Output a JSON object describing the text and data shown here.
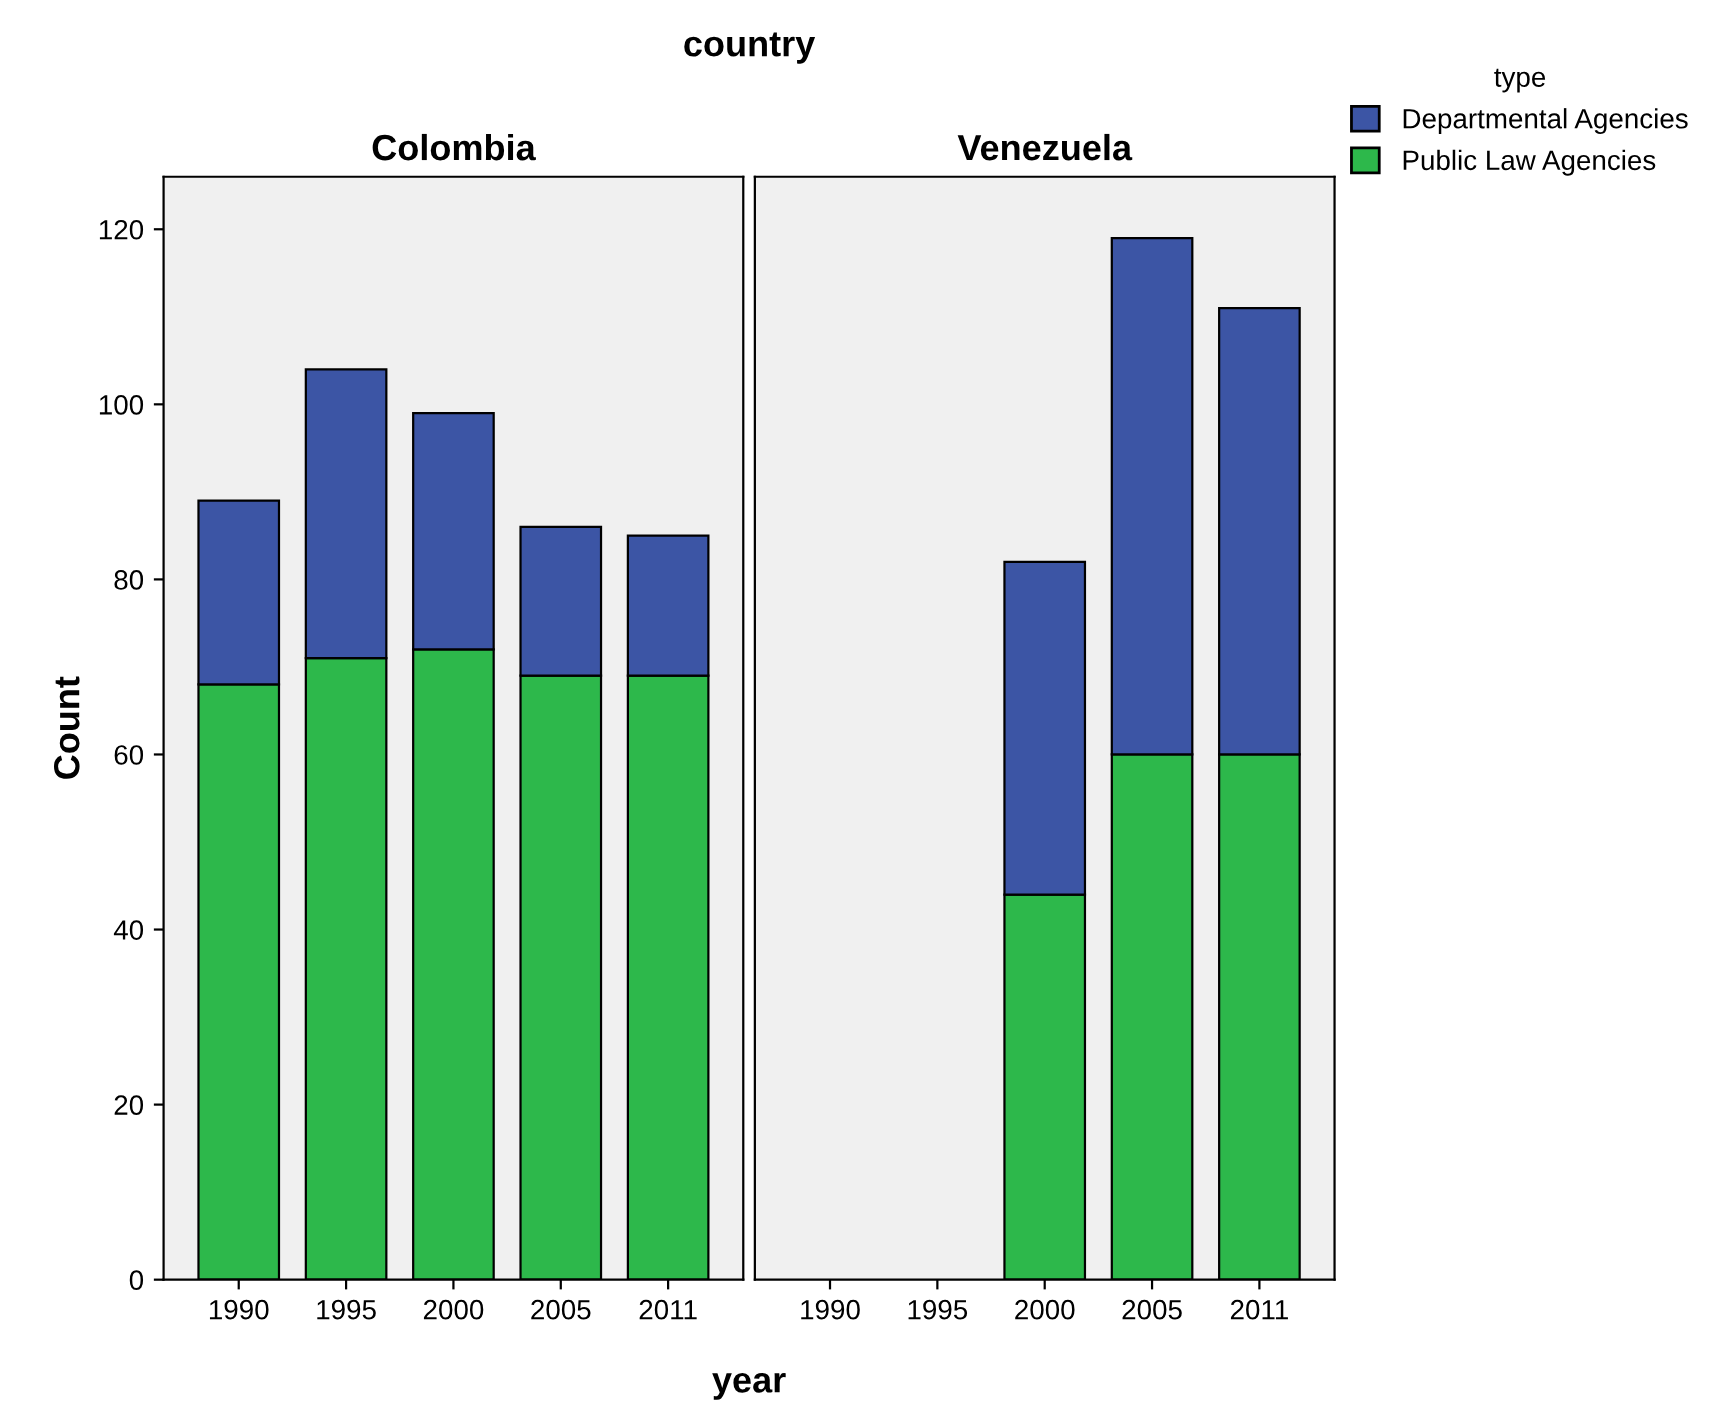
{
  "chart_data": [
    {
      "type": "bar",
      "title": "Colombia",
      "subtitle": "country",
      "xlabel": "year",
      "ylabel": "Count",
      "categories": [
        "1990",
        "1995",
        "2000",
        "2005",
        "2011"
      ],
      "stacked": true,
      "ylim": [
        0,
        126
      ],
      "yticks": [
        0,
        20,
        40,
        60,
        80,
        100,
        120
      ],
      "grid": false,
      "legend": false,
      "series": [
        {
          "color": "#2db84b",
          "values": [
            68,
            71,
            72,
            69,
            69
          ]
        },
        {
          "color": "#3c55a5",
          "values": [
            21,
            33,
            27,
            17,
            16
          ]
        }
      ]
    },
    {
      "type": "bar",
      "title": "Venezuela",
      "legend_title": "type",
      "categories": [
        "1990",
        "1995",
        "2000",
        "2005",
        "2011"
      ],
      "stacked": true,
      "ylim": [
        0,
        126
      ],
      "tick_labels": "x",
      "grid": false,
      "legend": "right",
      "series": [
        {
          "name": "Public Law Agencies",
          "color": "#2db84b",
          "values": [
            null,
            null,
            44,
            60,
            60
          ]
        },
        {
          "name": "Departmental Agencies",
          "color": "#3c55a5",
          "values": [
            null,
            null,
            38,
            59,
            51
          ]
        }
      ]
    }
  ]
}
